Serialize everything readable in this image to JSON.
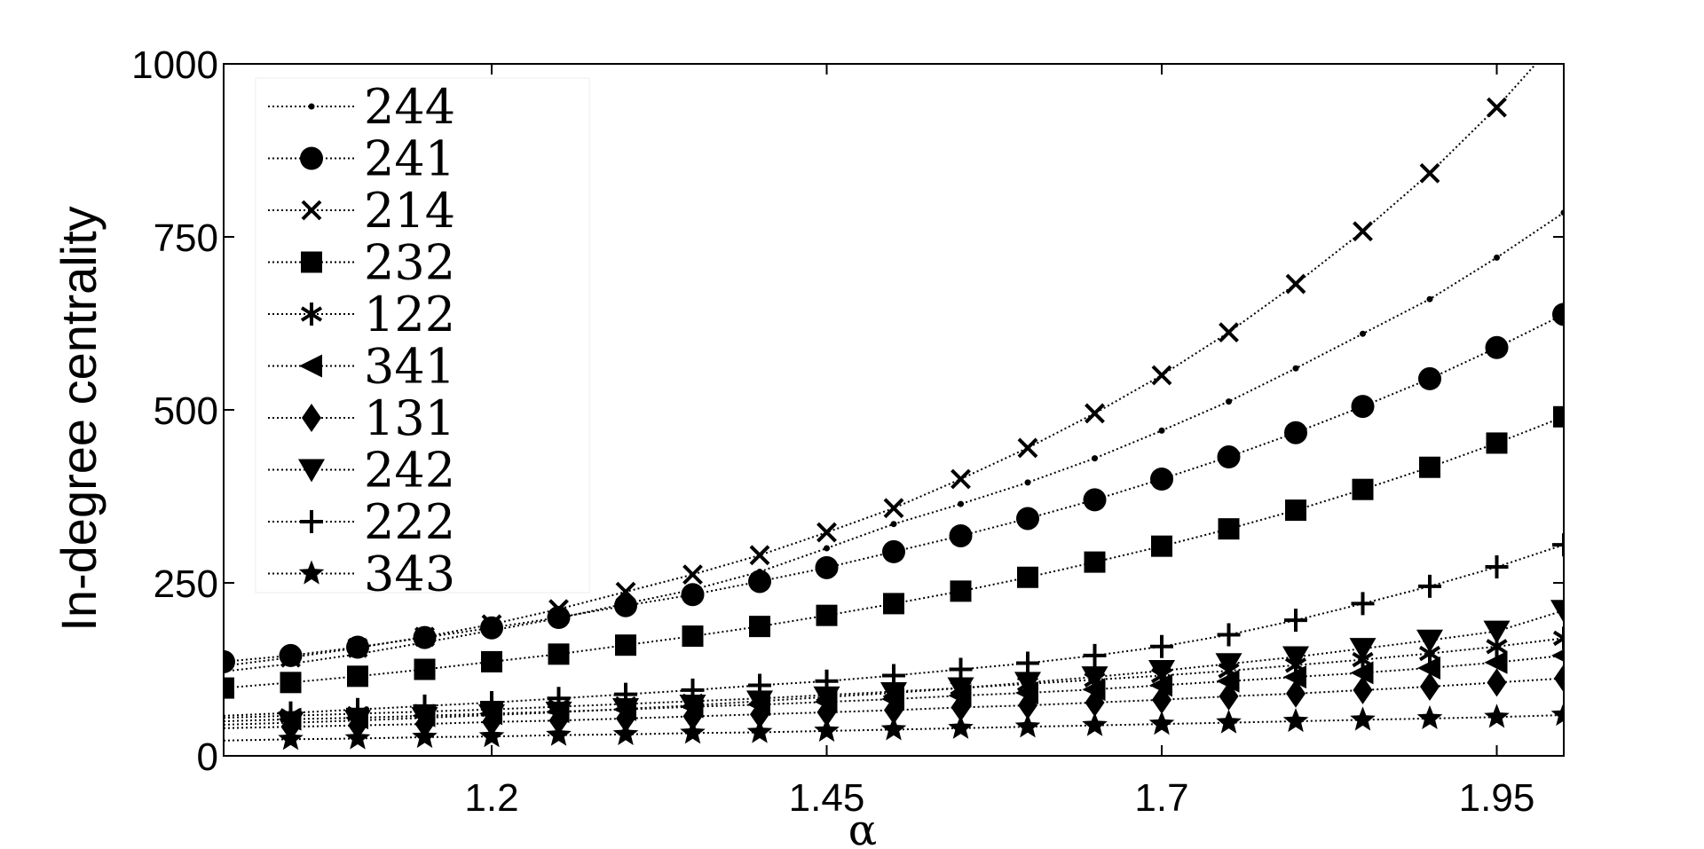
{
  "chart_data": {
    "type": "line",
    "title": "",
    "xlabel": "α",
    "ylabel": "In-degree centrality",
    "xlim": [
      1.0,
      2.0
    ],
    "ylim": [
      0,
      1000
    ],
    "xticks": [
      1.2,
      1.45,
      1.7,
      1.95
    ],
    "xtick_labels": [
      "1.2",
      "1.45",
      "1.7",
      "1.95"
    ],
    "yticks": [
      0,
      250,
      500,
      750,
      1000
    ],
    "ytick_labels": [
      "0",
      "250",
      "500",
      "750",
      "1000"
    ],
    "grid": false,
    "legend_position": "top-left",
    "line_style": "dotted",
    "x": [
      1.0,
      1.05,
      1.1,
      1.15,
      1.2,
      1.25,
      1.3,
      1.35,
      1.4,
      1.45,
      1.5,
      1.55,
      1.6,
      1.65,
      1.7,
      1.75,
      1.8,
      1.85,
      1.9,
      1.95,
      2.0
    ],
    "series": [
      {
        "name": "244",
        "marker": "dot",
        "values": [
          122,
          133,
          147,
          164,
          181,
          199,
          220,
          240,
          266,
          300,
          335,
          364,
          395,
          430,
          470,
          512,
          560,
          610,
          660,
          720,
          785
        ]
      },
      {
        "name": "241",
        "marker": "circle",
        "values": [
          136,
          145,
          157,
          171,
          185,
          200,
          217,
          233,
          252,
          272,
          295,
          318,
          343,
          370,
          400,
          432,
          467,
          505,
          545,
          590,
          638
        ]
      },
      {
        "name": "214",
        "marker": "x",
        "values": [
          130,
          142,
          156,
          172,
          190,
          212,
          237,
          262,
          290,
          323,
          358,
          400,
          445,
          495,
          550,
          612,
          682,
          758,
          842,
          937,
          1045
        ]
      },
      {
        "name": "232",
        "marker": "square",
        "values": [
          98,
          106,
          115,
          125,
          136,
          147,
          160,
          173,
          187,
          203,
          220,
          238,
          258,
          280,
          303,
          328,
          355,
          385,
          417,
          452,
          490
        ]
      },
      {
        "name": "122",
        "marker": "asterisk",
        "values": [
          55,
          58,
          61,
          64,
          67,
          71,
          75,
          79,
          83,
          88,
          93,
          98,
          104,
          110,
          116,
          123,
          131,
          139,
          148,
          158,
          170
        ]
      },
      {
        "name": "341",
        "marker": "triangle-left",
        "values": [
          50,
          53,
          55,
          58,
          61,
          64,
          67,
          71,
          74,
          78,
          82,
          87,
          91,
          96,
          102,
          108,
          114,
          120,
          127,
          135,
          145
        ]
      },
      {
        "name": "131",
        "marker": "diamond",
        "values": [
          40,
          42,
          44,
          46,
          49,
          51,
          54,
          57,
          60,
          63,
          66,
          70,
          73,
          77,
          81,
          86,
          90,
          95,
          100,
          106,
          112
        ]
      },
      {
        "name": "242",
        "marker": "triangle-down",
        "values": [
          45,
          48,
          51,
          55,
          59,
          63,
          68,
          73,
          79,
          85,
          91,
          98,
          106,
          114,
          123,
          133,
          143,
          155,
          167,
          180,
          210
        ]
      },
      {
        "name": "222",
        "marker": "plus",
        "values": [
          58,
          62,
          67,
          72,
          77,
          83,
          89,
          95,
          102,
          108,
          116,
          125,
          134,
          145,
          158,
          175,
          196,
          220,
          245,
          273,
          305
        ]
      },
      {
        "name": "343",
        "marker": "star",
        "values": [
          22,
          24,
          25,
          27,
          28,
          30,
          31,
          33,
          34,
          36,
          38,
          40,
          42,
          44,
          46,
          48,
          50,
          52,
          54,
          56,
          59
        ]
      }
    ]
  }
}
